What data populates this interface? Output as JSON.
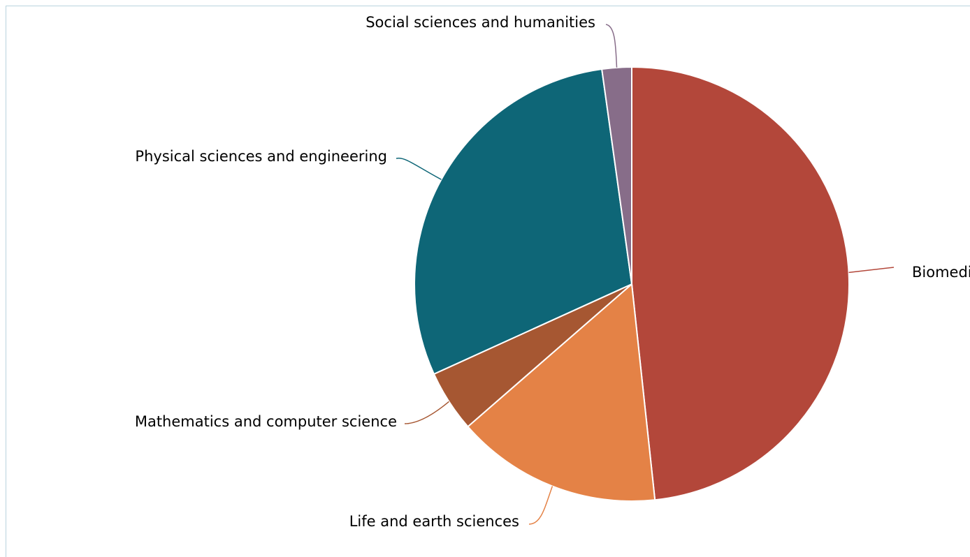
{
  "chart_data": {
    "type": "pie",
    "title": "",
    "slices": [
      {
        "label": "Biomedical sciences",
        "value": 48.3,
        "color": "#b3473a"
      },
      {
        "label": "Life and earth sciences",
        "value": 15.3,
        "color": "#e48246"
      },
      {
        "label": "Mathematics and computer science",
        "value": 4.6,
        "color": "#a65732"
      },
      {
        "label": "Physical sciences and engineering",
        "value": 29.6,
        "color": "#0e6677"
      },
      {
        "label": "Social sciences and humanities",
        "value": 2.2,
        "color": "#876d89"
      }
    ]
  }
}
